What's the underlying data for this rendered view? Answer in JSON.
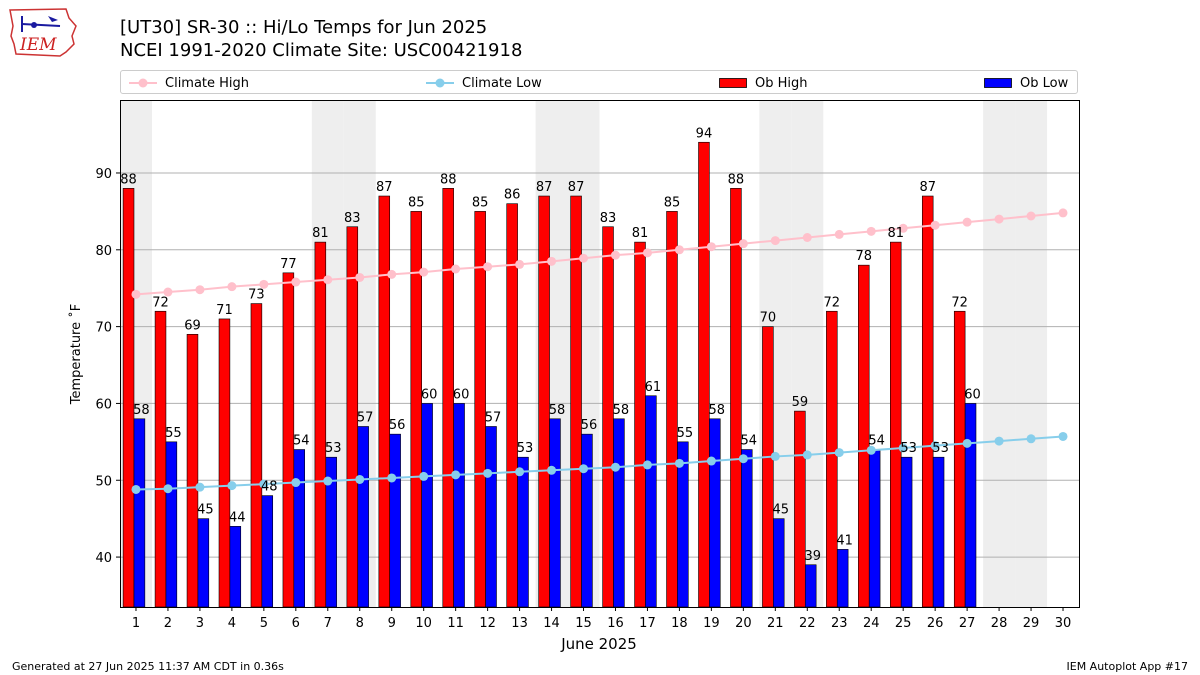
{
  "header": {
    "logo_text": "IEM",
    "title_line1": "[UT30] SR-30  :: Hi/Lo Temps for Jun 2025",
    "title_line2": "NCEI 1991-2020 Climate Site: USC00421918"
  },
  "legend": {
    "climate_high": "Climate High",
    "climate_low": "Climate Low",
    "ob_high": "Ob High",
    "ob_low": "Ob Low"
  },
  "footer": {
    "generated": "Generated at 27 Jun 2025 11:37 AM CDT in 0.36s",
    "app": "IEM Autoplot App #17"
  },
  "chart_data": {
    "type": "bar",
    "xlabel": "June 2025",
    "ylabel": "Temperature ˚F",
    "ylim": [
      33.5,
      99.5
    ],
    "yticks": [
      40,
      50,
      60,
      70,
      80,
      90
    ],
    "grid": true,
    "legend_position": "top",
    "categories": [
      "1",
      "2",
      "3",
      "4",
      "5",
      "6",
      "7",
      "8",
      "9",
      "10",
      "11",
      "12",
      "13",
      "14",
      "15",
      "16",
      "17",
      "18",
      "19",
      "20",
      "21",
      "22",
      "23",
      "24",
      "25",
      "26",
      "27",
      "28",
      "29",
      "30"
    ],
    "weekend_shading_days": [
      1,
      7,
      8,
      14,
      15,
      21,
      22,
      28,
      29
    ],
    "series": [
      {
        "name": "Ob High",
        "kind": "bar",
        "color": "#ff0000",
        "values": [
          88,
          72,
          69,
          71,
          73,
          77,
          81,
          83,
          87,
          85,
          88,
          85,
          86,
          87,
          87,
          83,
          81,
          85,
          94,
          88,
          70,
          59,
          72,
          78,
          81,
          87,
          72,
          null,
          null,
          null
        ]
      },
      {
        "name": "Ob Low",
        "kind": "bar",
        "color": "#0000ff",
        "values": [
          58,
          55,
          45,
          44,
          48,
          54,
          53,
          57,
          56,
          60,
          60,
          57,
          53,
          58,
          56,
          58,
          61,
          55,
          58,
          54,
          45,
          39,
          41,
          54,
          53,
          53,
          60,
          null,
          null,
          null
        ]
      },
      {
        "name": "Climate High",
        "kind": "line",
        "color": "#ffc0cb",
        "values": [
          74.2,
          74.5,
          74.8,
          75.2,
          75.5,
          75.8,
          76.1,
          76.4,
          76.8,
          77.1,
          77.5,
          77.8,
          78.1,
          78.5,
          78.9,
          79.3,
          79.6,
          80.0,
          80.4,
          80.8,
          81.2,
          81.6,
          82.0,
          82.4,
          82.8,
          83.2,
          83.6,
          84.0,
          84.4,
          84.8
        ]
      },
      {
        "name": "Climate Low",
        "kind": "line",
        "color": "#87ceeb",
        "values": [
          48.8,
          48.9,
          49.1,
          49.3,
          49.5,
          49.7,
          49.9,
          50.1,
          50.3,
          50.5,
          50.7,
          50.9,
          51.1,
          51.3,
          51.5,
          51.7,
          52.0,
          52.2,
          52.5,
          52.8,
          53.1,
          53.3,
          53.6,
          53.9,
          54.2,
          54.5,
          54.8,
          55.1,
          55.4,
          55.7
        ]
      }
    ]
  }
}
